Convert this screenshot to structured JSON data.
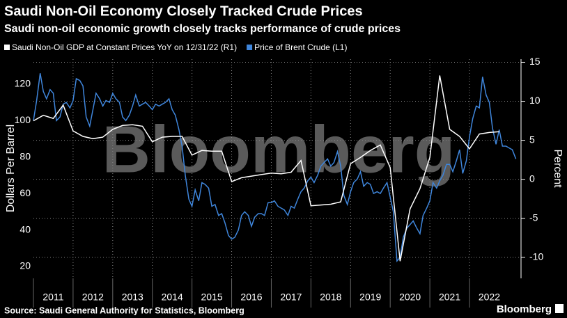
{
  "chart_data": {
    "type": "line",
    "title": "Saudi Non-Oil Economy Closely Tracked Crude Prices",
    "subtitle": "Saudi non-oil economic growth closely tracks performance of crude prices",
    "watermark": "Bloomberg",
    "y_label": "Dollars Per Barrel",
    "y2_label": "Percent",
    "source": "Source: Saudi General Authority for Statistics, Bloomberg",
    "logo": "Bloomberg",
    "xlim": [
      2011,
      2023.3
    ],
    "xticks": [
      2011,
      2012,
      2013,
      2014,
      2015,
      2016,
      2017,
      2018,
      2019,
      2020,
      2021,
      2022
    ],
    "ylim": [
      13.5,
      133.7
    ],
    "yticks": [
      20,
      40,
      60,
      80,
      100,
      120
    ],
    "y2lim": [
      -12.7,
      15.4
    ],
    "y2ticks": [
      -10,
      -5,
      0,
      5,
      10,
      15
    ],
    "grid": true,
    "series": [
      {
        "name": "Saudi Non-Oil GDP at Constant Prices YoY on 12/31/22 (R1)",
        "color": "#ffffff",
        "axis": "y2",
        "x": [
          2011,
          2011.25,
          2011.5,
          2011.75,
          2012,
          2012.25,
          2012.5,
          2012.75,
          2013,
          2013.25,
          2013.5,
          2013.75,
          2014,
          2014.25,
          2014.5,
          2014.75,
          2015,
          2015.25,
          2015.5,
          2015.75,
          2016,
          2016.25,
          2016.5,
          2016.75,
          2017,
          2017.25,
          2017.5,
          2017.75,
          2018,
          2018.25,
          2018.5,
          2018.75,
          2019,
          2019.25,
          2019.5,
          2019.75,
          2020,
          2020.25,
          2020.5,
          2020.75,
          2021,
          2021.25,
          2021.5,
          2021.75,
          2022,
          2022.25,
          2022.5,
          2022.75
        ],
        "values": [
          7.5,
          8.2,
          7.8,
          9.5,
          6.2,
          5.5,
          5.2,
          5.4,
          6.4,
          6.9,
          7.0,
          6.8,
          4.8,
          5.4,
          5.5,
          5.5,
          3.1,
          3.7,
          3.6,
          3.6,
          -0.3,
          0.2,
          0.4,
          0.6,
          0.8,
          0.7,
          0.9,
          2.4,
          -3.4,
          -3.3,
          -3.2,
          -2.9,
          2.0,
          2.8,
          3.7,
          4.4,
          1.5,
          -10.5,
          -3.8,
          -1.2,
          2.8,
          13.3,
          6.4,
          5.5,
          3.9,
          5.8,
          6.0,
          6.1
        ]
      },
      {
        "name": "Price of Brent Crude (L1)",
        "color": "#3f86dc",
        "axis": "y",
        "x": [
          2011,
          2011.08,
          2011.17,
          2011.25,
          2011.33,
          2011.42,
          2011.5,
          2011.58,
          2011.67,
          2011.75,
          2011.83,
          2011.92,
          2012,
          2012.08,
          2012.17,
          2012.25,
          2012.33,
          2012.42,
          2012.5,
          2012.58,
          2012.67,
          2012.75,
          2012.83,
          2012.92,
          2013,
          2013.08,
          2013.17,
          2013.25,
          2013.33,
          2013.42,
          2013.5,
          2013.58,
          2013.67,
          2013.75,
          2013.83,
          2013.92,
          2014,
          2014.08,
          2014.17,
          2014.25,
          2014.33,
          2014.42,
          2014.5,
          2014.58,
          2014.67,
          2014.75,
          2014.83,
          2014.92,
          2015,
          2015.08,
          2015.17,
          2015.25,
          2015.33,
          2015.42,
          2015.5,
          2015.58,
          2015.67,
          2015.75,
          2015.83,
          2015.92,
          2016,
          2016.08,
          2016.17,
          2016.25,
          2016.33,
          2016.42,
          2016.5,
          2016.58,
          2016.67,
          2016.75,
          2016.83,
          2016.92,
          2017,
          2017.08,
          2017.17,
          2017.25,
          2017.33,
          2017.42,
          2017.5,
          2017.58,
          2017.67,
          2017.75,
          2017.83,
          2017.92,
          2018,
          2018.08,
          2018.17,
          2018.25,
          2018.33,
          2018.42,
          2018.5,
          2018.58,
          2018.67,
          2018.75,
          2018.83,
          2018.92,
          2019,
          2019.08,
          2019.17,
          2019.25,
          2019.33,
          2019.42,
          2019.5,
          2019.58,
          2019.67,
          2019.75,
          2019.83,
          2019.92,
          2020,
          2020.08,
          2020.17,
          2020.25,
          2020.33,
          2020.42,
          2020.5,
          2020.58,
          2020.67,
          2020.75,
          2020.83,
          2020.92,
          2021,
          2021.08,
          2021.17,
          2021.25,
          2021.33,
          2021.42,
          2021.5,
          2021.58,
          2021.67,
          2021.75,
          2021.83,
          2021.92,
          2022,
          2022.08,
          2022.17,
          2022.25,
          2022.33,
          2022.42,
          2022.5,
          2022.58,
          2022.67,
          2022.75,
          2022.83,
          2022.92,
          2023,
          2023.08,
          2023.17
        ],
        "values": [
          100,
          111,
          126,
          116,
          112,
          117,
          115,
          100,
          102,
          109,
          110,
          107,
          111,
          123,
          122,
          119,
          102,
          97,
          106,
          115,
          112,
          108,
          111,
          110,
          115,
          112,
          110,
          102,
          100,
          103,
          108,
          114,
          108,
          109,
          110,
          108,
          106,
          109,
          108,
          109,
          110,
          112,
          106,
          103,
          95,
          86,
          70,
          57,
          53,
          62,
          56,
          66,
          65,
          63,
          53,
          54,
          48,
          49,
          44,
          37,
          35,
          36,
          40,
          48,
          50,
          48,
          42,
          47,
          49,
          49,
          48,
          55,
          55,
          56,
          53,
          52,
          51,
          48,
          53,
          52,
          57,
          61,
          63,
          67,
          69,
          66,
          70,
          75,
          77,
          79,
          75,
          77,
          83,
          75,
          59,
          54,
          61,
          66,
          68,
          72,
          64,
          66,
          65,
          60,
          61,
          60,
          63,
          66,
          58,
          50,
          23,
          25,
          36,
          41,
          43,
          45,
          41,
          38,
          48,
          52,
          56,
          66,
          63,
          67,
          70,
          76,
          76,
          72,
          78,
          84,
          71,
          78,
          91,
          101,
          108,
          107,
          124,
          114,
          110,
          96,
          87,
          95,
          86,
          86,
          85,
          84,
          79
        ]
      }
    ]
  }
}
